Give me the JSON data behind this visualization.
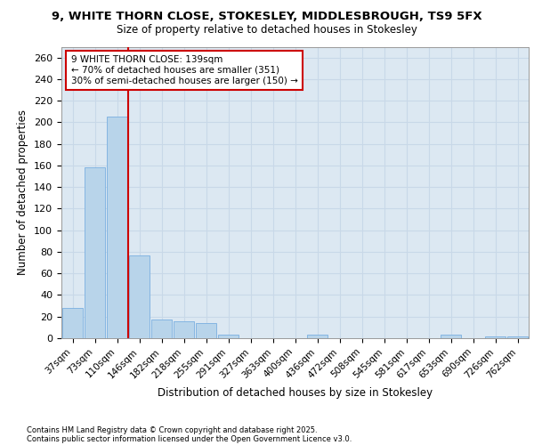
{
  "title1": "9, WHITE THORN CLOSE, STOKESLEY, MIDDLESBROUGH, TS9 5FX",
  "title2": "Size of property relative to detached houses in Stokesley",
  "xlabel": "Distribution of detached houses by size in Stokesley",
  "ylabel": "Number of detached properties",
  "categories": [
    "37sqm",
    "73sqm",
    "110sqm",
    "146sqm",
    "182sqm",
    "218sqm",
    "255sqm",
    "291sqm",
    "327sqm",
    "363sqm",
    "400sqm",
    "436sqm",
    "472sqm",
    "508sqm",
    "545sqm",
    "581sqm",
    "617sqm",
    "653sqm",
    "690sqm",
    "726sqm",
    "762sqm"
  ],
  "values": [
    28,
    158,
    205,
    77,
    17,
    16,
    14,
    3,
    0,
    0,
    0,
    3,
    0,
    0,
    0,
    0,
    0,
    3,
    0,
    2,
    2
  ],
  "bar_color": "#b8d4ea",
  "bar_edge_color": "#7aafe0",
  "annotation_title": "9 WHITE THORN CLOSE: 139sqm",
  "annotation_line1": "← 70% of detached houses are smaller (351)",
  "annotation_line2": "30% of semi-detached houses are larger (150) →",
  "annotation_box_color": "#ffffff",
  "annotation_box_edge": "#cc0000",
  "vline_color": "#cc0000",
  "grid_color": "#c8d8e8",
  "bg_color": "#dce8f2",
  "ylim": [
    0,
    270
  ],
  "yticks": [
    0,
    20,
    40,
    60,
    80,
    100,
    120,
    140,
    160,
    180,
    200,
    220,
    240,
    260
  ],
  "footnote1": "Contains HM Land Registry data © Crown copyright and database right 2025.",
  "footnote2": "Contains public sector information licensed under the Open Government Licence v3.0."
}
